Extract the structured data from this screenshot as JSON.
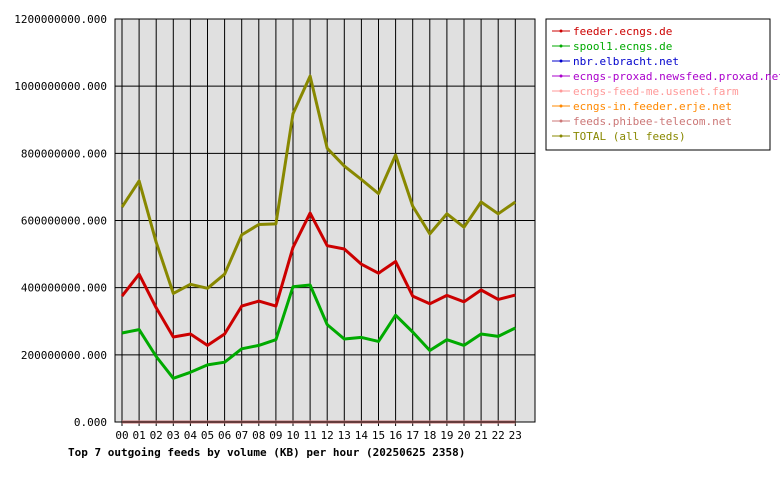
{
  "chart_data": {
    "type": "line",
    "title": "Top 7 outgoing feeds by volume (KB) per hour (20250625 2358)",
    "categories": [
      "00",
      "01",
      "02",
      "03",
      "04",
      "05",
      "06",
      "07",
      "08",
      "09",
      "10",
      "11",
      "12",
      "13",
      "14",
      "15",
      "16",
      "17",
      "18",
      "19",
      "20",
      "21",
      "22",
      "23"
    ],
    "ylim": [
      0,
      1200000000
    ],
    "yticks": [
      {
        "value": 0,
        "label": "0.000"
      },
      {
        "value": 200000000,
        "label": "200000000.000"
      },
      {
        "value": 400000000,
        "label": "400000000.000"
      },
      {
        "value": 600000000,
        "label": "600000000.000"
      },
      {
        "value": 800000000,
        "label": "800000000.000"
      },
      {
        "value": 1000000000,
        "label": "1000000000.000"
      },
      {
        "value": 1200000000,
        "label": "1200000000.000"
      }
    ],
    "grid": true,
    "legend_position": "right",
    "plot_background": "#e0e0e0",
    "series": [
      {
        "name": "feeder.ecngs.de",
        "color": "#cc0000",
        "values": [
          375000000,
          440000000,
          340000000,
          253000000,
          262000000,
          228000000,
          262000000,
          345000000,
          360000000,
          345000000,
          520000000,
          622000000,
          525000000,
          515000000,
          470000000,
          443000000,
          478000000,
          375000000,
          352000000,
          377000000,
          358000000,
          393000000,
          365000000,
          378000000
        ]
      },
      {
        "name": "spool1.ecngs.de",
        "color": "#00aa00",
        "values": [
          265000000,
          275000000,
          195000000,
          130000000,
          148000000,
          170000000,
          178000000,
          218000000,
          228000000,
          245000000,
          403000000,
          408000000,
          290000000,
          247000000,
          252000000,
          240000000,
          318000000,
          268000000,
          213000000,
          245000000,
          228000000,
          262000000,
          255000000,
          280000000
        ]
      },
      {
        "name": "nbr.elbracht.net",
        "color": "#0000cc",
        "values": [
          0,
          0,
          0,
          0,
          0,
          0,
          0,
          0,
          0,
          0,
          0,
          0,
          0,
          0,
          0,
          0,
          0,
          0,
          0,
          0,
          0,
          0,
          0,
          0
        ]
      },
      {
        "name": "ecngs-proxad.newsfeed.proxad.net",
        "color": "#aa00cc",
        "values": [
          0,
          0,
          0,
          0,
          0,
          0,
          0,
          0,
          0,
          0,
          0,
          0,
          0,
          0,
          0,
          0,
          0,
          0,
          0,
          0,
          0,
          0,
          0,
          0
        ]
      },
      {
        "name": "ecngs-feed-me.usenet.farm",
        "color": "#ff9999",
        "values": [
          0,
          0,
          0,
          0,
          0,
          0,
          0,
          0,
          0,
          0,
          0,
          0,
          0,
          0,
          0,
          0,
          0,
          0,
          0,
          0,
          0,
          0,
          0,
          0
        ]
      },
      {
        "name": "ecngs-in.feeder.erje.net",
        "color": "#ff8800",
        "values": [
          0,
          0,
          0,
          0,
          0,
          0,
          0,
          0,
          0,
          0,
          0,
          0,
          0,
          0,
          0,
          0,
          0,
          0,
          0,
          0,
          0,
          0,
          0,
          0
        ]
      },
      {
        "name": "feeds.phibee-telecom.net",
        "color": "#cc7777",
        "values": [
          0,
          0,
          0,
          0,
          0,
          0,
          0,
          0,
          0,
          0,
          0,
          0,
          0,
          0,
          0,
          0,
          0,
          0,
          0,
          0,
          0,
          0,
          0,
          0
        ]
      },
      {
        "name": "TOTAL (all feeds)",
        "color": "#888800",
        "values": [
          640000000,
          718000000,
          535000000,
          383000000,
          410000000,
          398000000,
          440000000,
          557000000,
          588000000,
          590000000,
          918000000,
          1030000000,
          815000000,
          762000000,
          722000000,
          680000000,
          795000000,
          643000000,
          560000000,
          620000000,
          580000000,
          655000000,
          620000000,
          655000000
        ]
      }
    ]
  }
}
